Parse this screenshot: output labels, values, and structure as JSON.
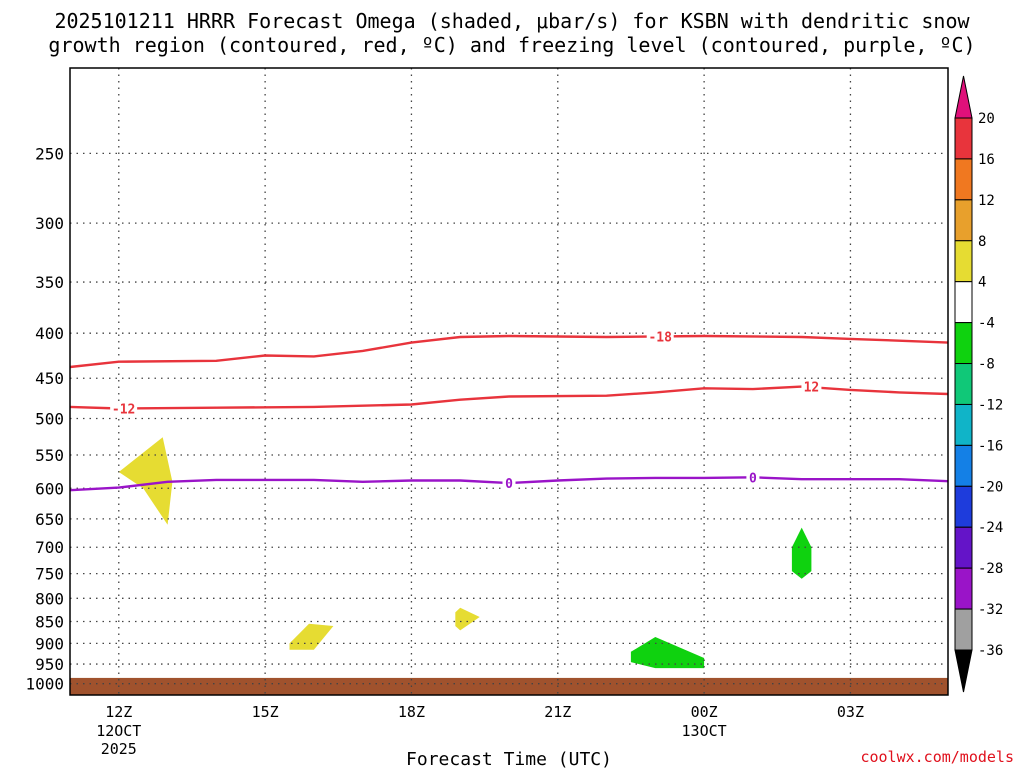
{
  "chart_data": {
    "type": "heatmap",
    "title_line1": "2025101211 HRRR Forecast Omega (shaded, μbar/s) for KSBN with dendritic snow",
    "title_line2": "growth region (contoured, red, ºC) and freezing level (contoured, purple, ºC)",
    "xlabel": "Forecast Time (UTC)",
    "ylabel": "",
    "credit": "coolwx.com/models",
    "x_ticks": [
      {
        "hour": 0,
        "label": "12Z",
        "sub1": "12OCT",
        "sub2": "2025"
      },
      {
        "hour": 3,
        "label": "15Z",
        "sub1": "",
        "sub2": ""
      },
      {
        "hour": 6,
        "label": "18Z",
        "sub1": "",
        "sub2": ""
      },
      {
        "hour": 9,
        "label": "21Z",
        "sub1": "",
        "sub2": ""
      },
      {
        "hour": 12,
        "label": "00Z",
        "sub1": "13OCT",
        "sub2": ""
      },
      {
        "hour": 15,
        "label": "03Z",
        "sub1": "",
        "sub2": ""
      }
    ],
    "xlim_hours": [
      -1,
      17
    ],
    "y_ticks": [
      250,
      300,
      350,
      400,
      450,
      500,
      550,
      600,
      650,
      700,
      750,
      800,
      850,
      900,
      950,
      1000
    ],
    "ylim_hPa": [
      1030,
      200
    ],
    "y_scale": "log-pressure",
    "grid": true,
    "ground_color": "#a0522d",
    "ground_top_hPa": 985,
    "contours": [
      {
        "color": "#e8343c",
        "label": "-18",
        "points": [
          [
            -1,
            437
          ],
          [
            0,
            431
          ],
          [
            2,
            430
          ],
          [
            3,
            424
          ],
          [
            4,
            425
          ],
          [
            5,
            419
          ],
          [
            6,
            410
          ],
          [
            7,
            404
          ],
          [
            8,
            403
          ],
          [
            10,
            404
          ],
          [
            12,
            403
          ],
          [
            14,
            404
          ],
          [
            15,
            406
          ],
          [
            16,
            408
          ],
          [
            17,
            410
          ]
        ],
        "label_hour": 11.1
      },
      {
        "color": "#e8343c",
        "label": "-12",
        "points": [
          [
            -1,
            485
          ],
          [
            0,
            487
          ],
          [
            2,
            486
          ],
          [
            4,
            485
          ],
          [
            6,
            482
          ],
          [
            7,
            476
          ],
          [
            8,
            472
          ],
          [
            10,
            471
          ],
          [
            11,
            467
          ],
          [
            12,
            462
          ],
          [
            13,
            463
          ],
          [
            14,
            460
          ],
          [
            15,
            464
          ],
          [
            16,
            467
          ],
          [
            17,
            469
          ]
        ],
        "label_hour": 0.1
      },
      {
        "color": "#e8343c",
        "label": "12",
        "label_hour": 14.2,
        "label_hPa": 460
      },
      {
        "color": "#9a14c8",
        "label": "0",
        "points": [
          [
            -1,
            603
          ],
          [
            0,
            599
          ],
          [
            1,
            590
          ],
          [
            2,
            587
          ],
          [
            3,
            587
          ],
          [
            4,
            587
          ],
          [
            5,
            590
          ],
          [
            6,
            588
          ],
          [
            7,
            588
          ],
          [
            8,
            592
          ],
          [
            9,
            588
          ],
          [
            10,
            585
          ],
          [
            11,
            584
          ],
          [
            12,
            584
          ],
          [
            13,
            583
          ],
          [
            14,
            586
          ],
          [
            15,
            586
          ],
          [
            16,
            586
          ],
          [
            17,
            589
          ]
        ],
        "label_hour": 8.0,
        "label2_hour": 13.0
      }
    ],
    "omega_features": [
      {
        "name": "yellow-blob-1",
        "color": "#e6dc32",
        "value_range": [
          4,
          8
        ],
        "points": [
          [
            0.0,
            575
          ],
          [
            0.9,
            525
          ],
          [
            1.1,
            590
          ],
          [
            1.0,
            660
          ],
          [
            0.5,
            600
          ]
        ]
      },
      {
        "name": "yellow-blob-2",
        "color": "#e6dc32",
        "value_range": [
          4,
          8
        ],
        "points": [
          [
            3.5,
            900
          ],
          [
            3.9,
            855
          ],
          [
            4.4,
            860
          ],
          [
            4.0,
            915
          ],
          [
            3.5,
            915
          ]
        ]
      },
      {
        "name": "yellow-blob-3",
        "color": "#e6dc32",
        "value_range": [
          4,
          8
        ],
        "points": [
          [
            6.9,
            830
          ],
          [
            7.0,
            820
          ],
          [
            7.4,
            840
          ],
          [
            7.0,
            870
          ],
          [
            6.9,
            860
          ]
        ]
      },
      {
        "name": "green-blob-1",
        "color": "#0fd20f",
        "value_range": [
          -8,
          -4
        ],
        "points": [
          [
            10.5,
            920
          ],
          [
            11.0,
            885
          ],
          [
            12.0,
            935
          ],
          [
            12.0,
            960
          ],
          [
            11.0,
            960
          ],
          [
            10.5,
            945
          ]
        ]
      },
      {
        "name": "green-blob-2",
        "color": "#0fd20f",
        "value_range": [
          -8,
          -4
        ],
        "points": [
          [
            14.0,
            665
          ],
          [
            14.2,
            700
          ],
          [
            14.2,
            745
          ],
          [
            14.0,
            760
          ],
          [
            13.8,
            745
          ],
          [
            13.8,
            700
          ]
        ]
      }
    ],
    "colorbar": {
      "labels": [
        "20",
        "16",
        "12",
        "8",
        "4",
        "-4",
        "-8",
        "-12",
        "-16",
        "-20",
        "-24",
        "-28",
        "-32",
        "-36"
      ],
      "colors": [
        "#e8343c",
        "#f07820",
        "#e8a02c",
        "#e6dc32",
        "#ffffff",
        "#0fd20f",
        "#10c878",
        "#10b4c8",
        "#1480e6",
        "#1e3cdc",
        "#6414c8",
        "#9a14c8",
        "#a0a0a0"
      ],
      "top_arrow_color": "#e0107a",
      "bottom_arrow_color": "#000000"
    }
  }
}
